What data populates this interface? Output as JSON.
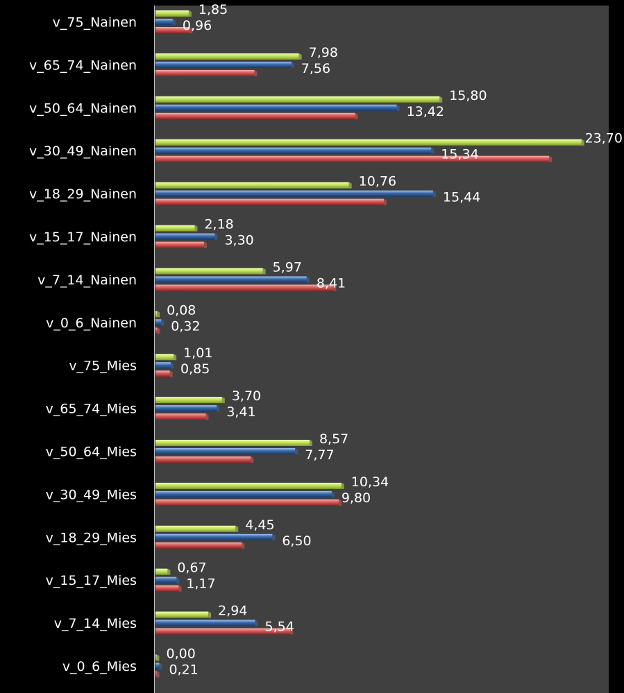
{
  "chart_data": {
    "type": "bar",
    "orientation": "horizontal",
    "grid": false,
    "legend": "none",
    "xlim": [
      0,
      24.3
    ],
    "categories": [
      "v_75_Nainen",
      "v_65_74_Nainen",
      "v_50_64_Nainen",
      "v_30_49_Nainen",
      "v_18_29_Nainen",
      "v_15_17_Nainen",
      "v_7_14_Nainen",
      "v_0_6_Nainen",
      "v_75_Mies",
      "v_65_74_Mies",
      "v_50_64_Mies",
      "v_30_49_Mies",
      "v_18_29_Mies",
      "v_15_17_Mies",
      "v_7_14_Mies",
      "v_0_6_Mies"
    ],
    "series": [
      {
        "color": "#c0e060",
        "values": [
          1.85,
          7.98,
          15.8,
          23.7,
          10.76,
          2.18,
          5.97,
          0.08,
          1.01,
          3.7,
          8.57,
          10.34,
          4.45,
          0.67,
          2.94,
          0.0
        ],
        "labels": [
          "1,85",
          "7,98",
          "15,80",
          "23,70",
          "10,76",
          "2,18",
          "5,97",
          "0,08",
          "1,01",
          "3,70",
          "8,57",
          "10,34",
          "4,45",
          "0,67",
          "2,94",
          "0,00"
        ]
      },
      {
        "color": "#3a68a8",
        "values": [
          0.96,
          7.56,
          13.42,
          15.34,
          15.44,
          3.3,
          8.41,
          0.32,
          0.85,
          3.41,
          7.77,
          9.8,
          6.5,
          1.17,
          5.54,
          0.21
        ],
        "labels": [
          "0,96",
          "7,56",
          "13,42",
          "15,34",
          "15,44",
          "3,30",
          "8,41",
          "0,32",
          "0,85",
          "3,41",
          "7,77",
          "9,80",
          "6,50",
          "1,17",
          "5,54",
          "0,21"
        ]
      },
      {
        "color": "#d85a5a",
        "values": [
          1.9,
          5.5,
          11.1,
          21.9,
          12.7,
          2.7,
          9.9,
          0.1,
          0.8,
          2.8,
          5.3,
          10.2,
          4.8,
          1.3,
          7.5,
          0.05
        ],
        "labels": []
      }
    ]
  }
}
